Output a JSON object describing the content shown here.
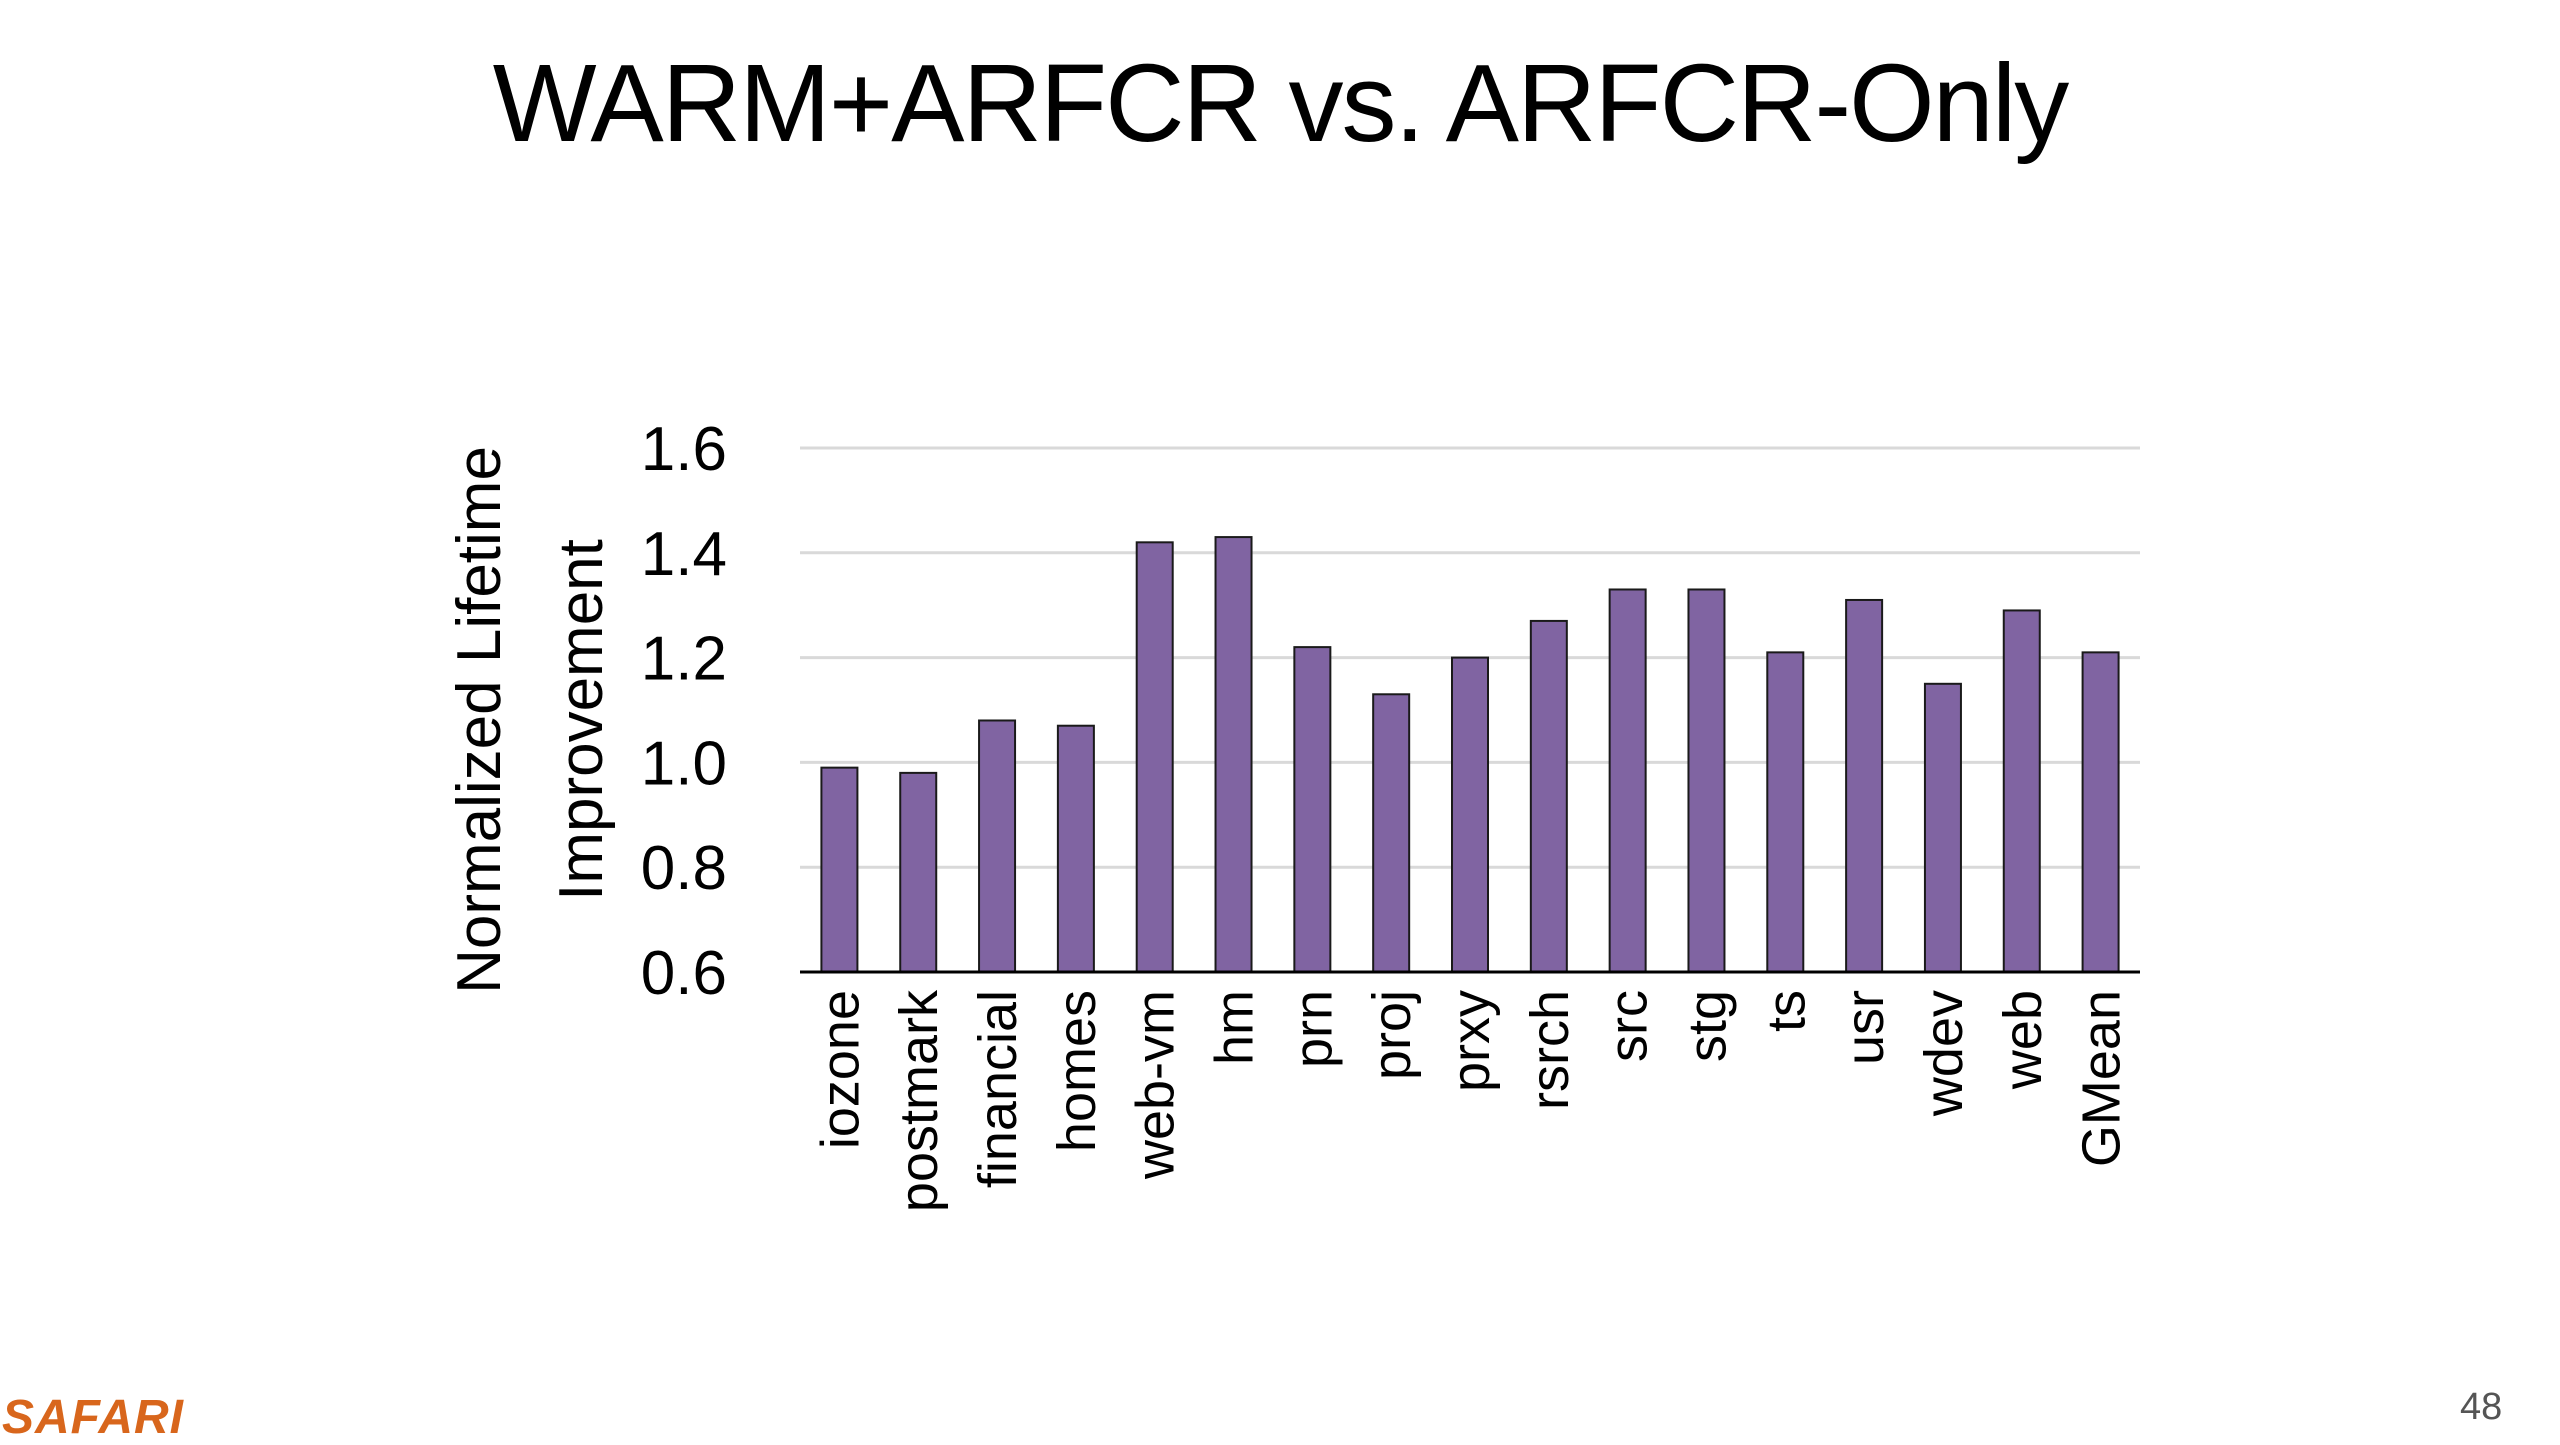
{
  "slide": {
    "title": "WARM+ARFCR vs. ARFCR-Only",
    "logo": "SAFARI",
    "page_number": "48"
  },
  "colors": {
    "bar": "#8064a2",
    "gridline": "#d9d9d9",
    "axis": "#000000",
    "logo": "#d8661c"
  },
  "chart_data": {
    "type": "bar",
    "title": "",
    "xlabel": "",
    "ylabel_lines": [
      "Normalized Lifetime",
      "Improvement"
    ],
    "categories": [
      "iozone",
      "postmark",
      "financial",
      "homes",
      "web-vm",
      "hm",
      "prn",
      "proj",
      "prxy",
      "rsrch",
      "src",
      "stg",
      "ts",
      "usr",
      "wdev",
      "web",
      "GMean"
    ],
    "values": [
      0.99,
      0.98,
      1.08,
      1.07,
      1.42,
      1.43,
      1.22,
      1.13,
      1.2,
      1.27,
      1.33,
      1.33,
      1.21,
      1.31,
      1.15,
      1.29,
      1.21
    ],
    "ylim": [
      0.6,
      1.6
    ],
    "yticks": [
      "0.6",
      "0.8",
      "1.0",
      "1.2",
      "1.4",
      "1.6"
    ],
    "grid": true,
    "legend": "none"
  }
}
